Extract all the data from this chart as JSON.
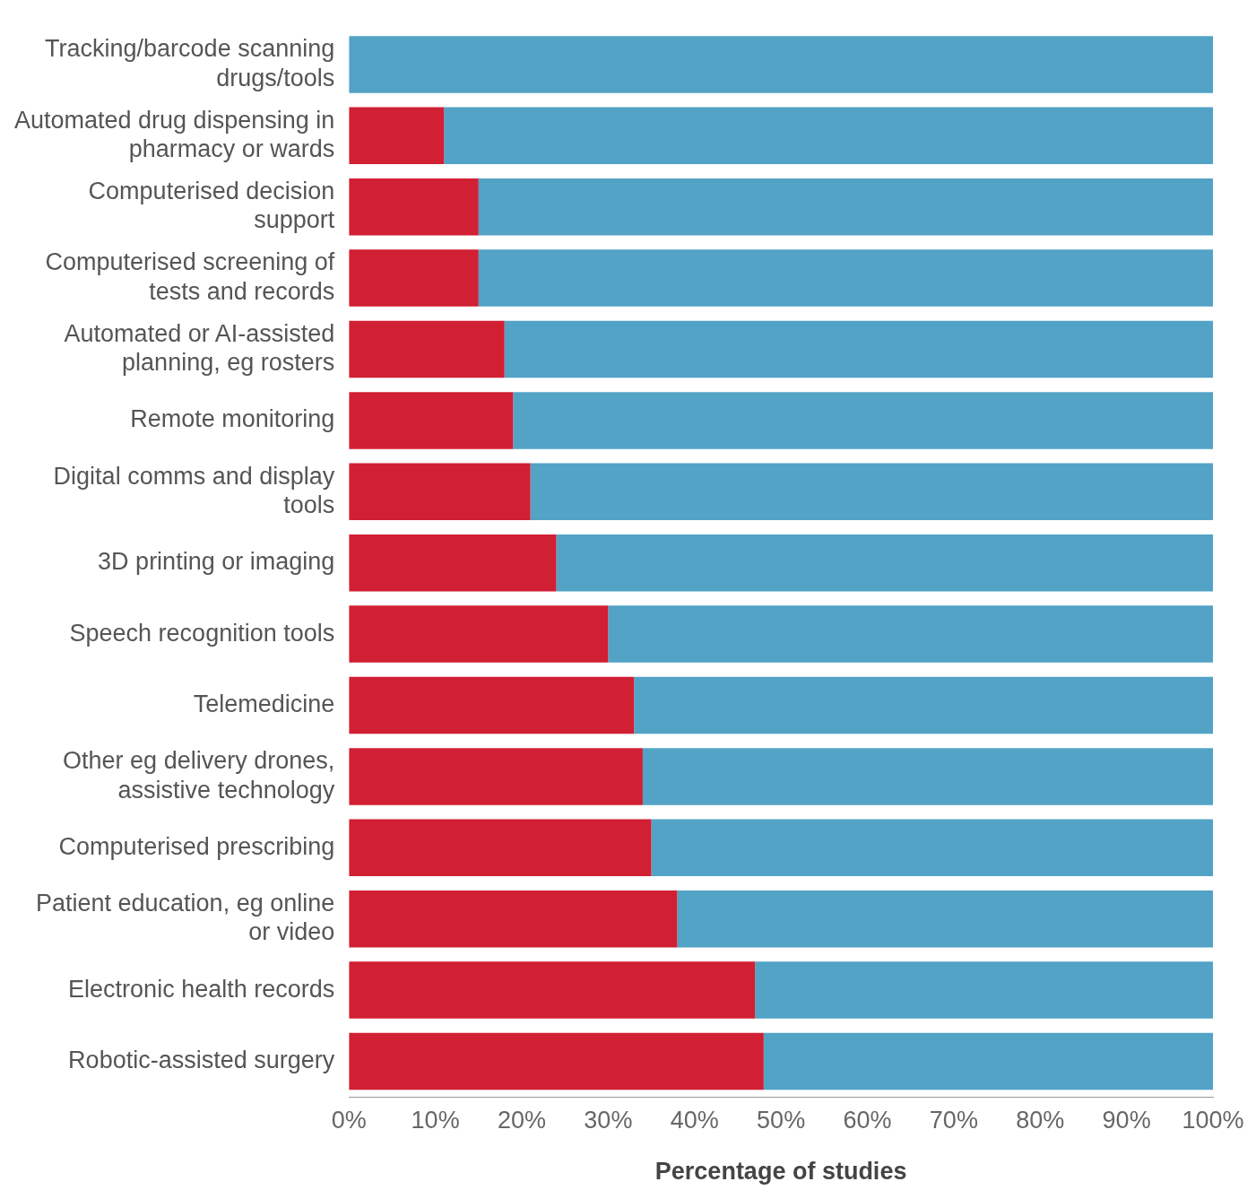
{
  "chart_data": {
    "type": "bar",
    "orientation": "horizontal",
    "stacked": true,
    "xlabel": "Percentage of studies",
    "categories": [
      "Tracking/barcode scanning drugs/tools",
      "Automated drug dispensing in pharmacy or wards",
      "Computerised decision support",
      "Computerised screening of tests and records",
      "Automated or AI-assisted planning, eg rosters",
      "Remote monitoring",
      "Digital comms and display tools",
      "3D printing or imaging",
      "Speech recognition tools",
      "Telemedicine",
      "Other eg delivery drones, assistive technology",
      "Computerised prescribing",
      "Patient education, eg online or video",
      "Electronic health records",
      "Robotic-assisted surgery"
    ],
    "series": [
      {
        "color": "#d11f33",
        "values": [
          0,
          11,
          15,
          15,
          18,
          19,
          21,
          24,
          30,
          33,
          34,
          35,
          38,
          47,
          48
        ]
      },
      {
        "color": "#52a3c6",
        "values": [
          100,
          89,
          85,
          85,
          82,
          81,
          79,
          76,
          70,
          67,
          66,
          65,
          62,
          53,
          52
        ]
      }
    ],
    "xlim": [
      0,
      100
    ],
    "xticks": [
      {
        "value": 0,
        "label": "0%"
      },
      {
        "value": 10,
        "label": "10%"
      },
      {
        "value": 20,
        "label": "20%"
      },
      {
        "value": 30,
        "label": "30%"
      },
      {
        "value": 40,
        "label": "40%"
      },
      {
        "value": 50,
        "label": "50%"
      },
      {
        "value": 60,
        "label": "60%"
      },
      {
        "value": 70,
        "label": "70%"
      },
      {
        "value": 80,
        "label": "80%"
      },
      {
        "value": 90,
        "label": "90%"
      },
      {
        "value": 100,
        "label": "100%"
      }
    ],
    "grid": false,
    "legend": false
  }
}
